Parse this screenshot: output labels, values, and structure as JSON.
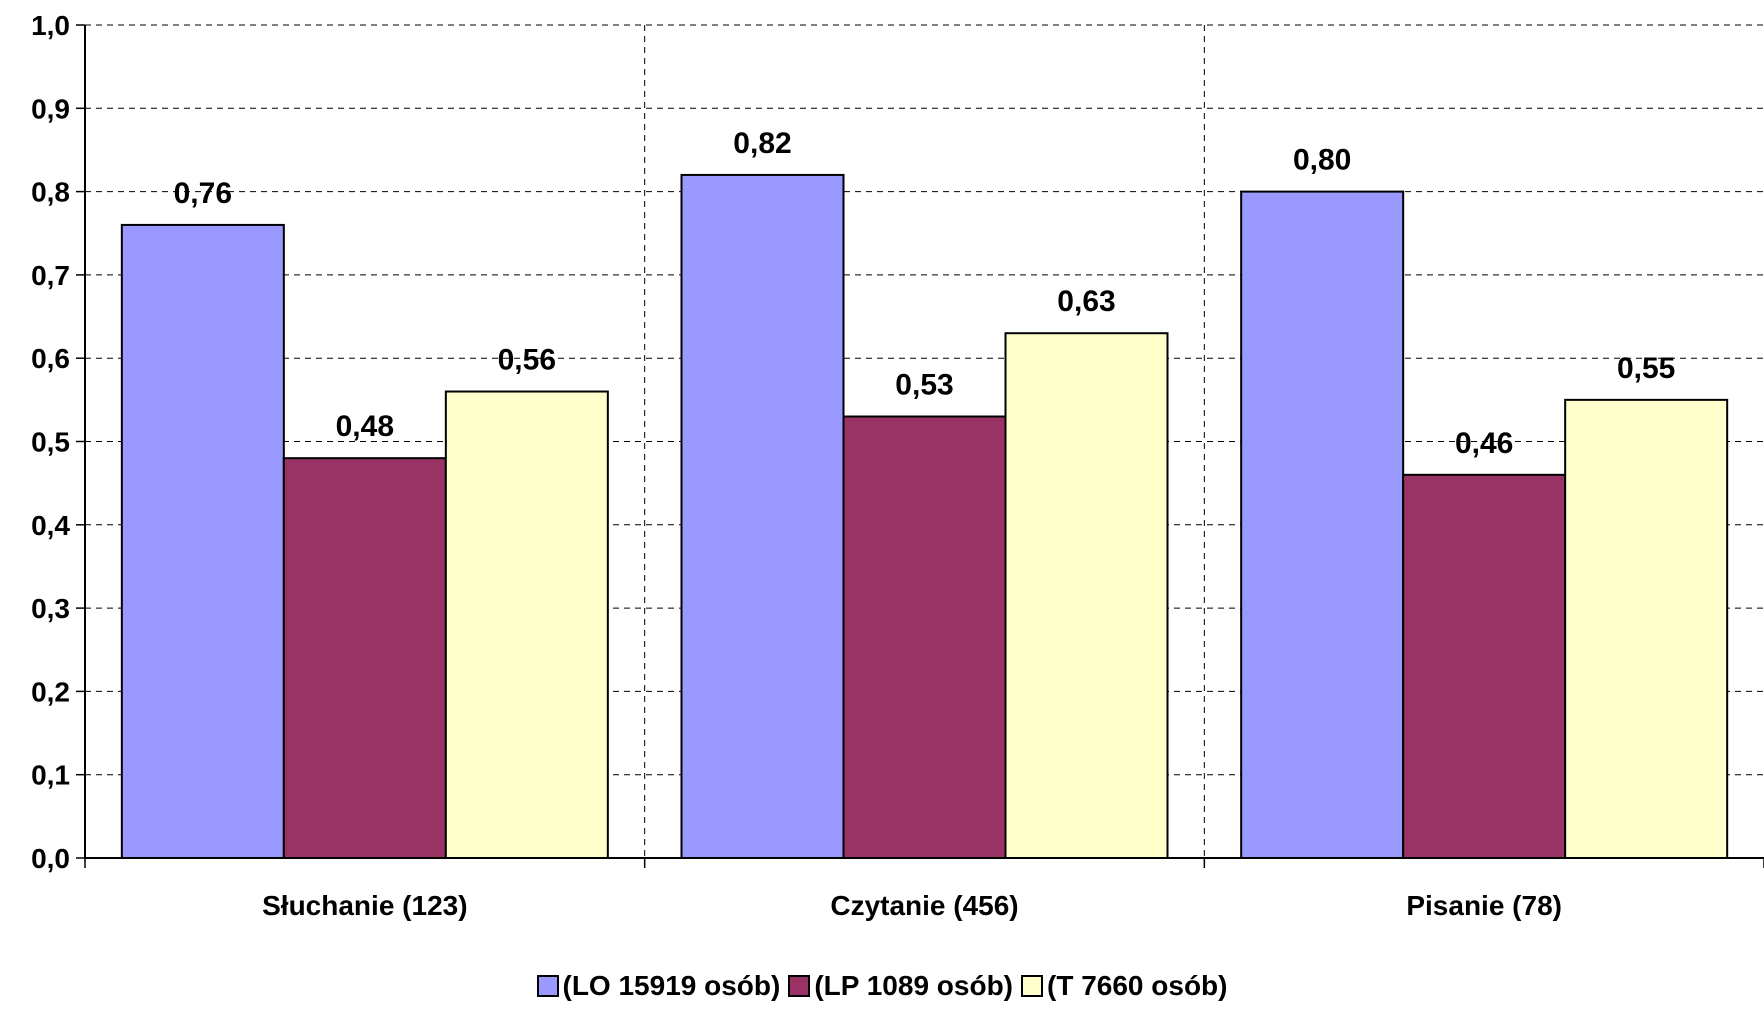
{
  "chart_data": {
    "type": "bar",
    "categories": [
      "Słuchanie (123)",
      "Czytanie (456)",
      "Pisanie (78)"
    ],
    "series": [
      {
        "name": "(LO 15919 osób)",
        "values": [
          0.76,
          0.82,
          0.8
        ],
        "labels": [
          "0,76",
          "0,82",
          "0,80"
        ],
        "color": "#9999FF"
      },
      {
        "name": "(LP 1089 osób)",
        "values": [
          0.48,
          0.53,
          0.46
        ],
        "labels": [
          "0,48",
          "0,53",
          "0,46"
        ],
        "color": "#993366"
      },
      {
        "name": "(T 7660 osób)",
        "values": [
          0.56,
          0.63,
          0.55
        ],
        "labels": [
          "0,56",
          "0,63",
          "0,55"
        ],
        "color": "#FFFFCC"
      }
    ],
    "ylim": [
      0,
      1.0
    ],
    "yticks": [
      "0,0",
      "0,1",
      "0,2",
      "0,3",
      "0,4",
      "0,5",
      "0,6",
      "0,7",
      "0,8",
      "0,9",
      "1,0"
    ],
    "grid": true,
    "legend_position": "bottom"
  }
}
